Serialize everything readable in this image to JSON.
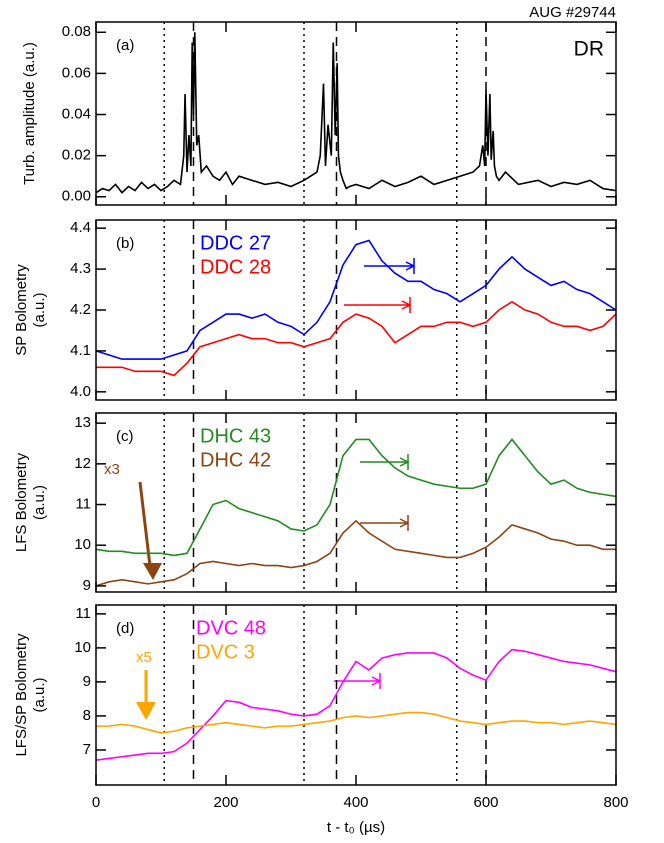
{
  "figure": {
    "shot": "AUG #29744",
    "xlabel": "t - t₀ (µs)"
  },
  "chart_data": [
    {
      "type": "line",
      "panel": "(a)",
      "tag": "DR",
      "ylabel": [
        "Turb. amplitude (a.u.)"
      ],
      "xlim": [
        0,
        800
      ],
      "xticks": [
        0,
        200,
        400,
        600,
        800
      ],
      "ylim": [
        -0.004,
        0.085
      ],
      "yticks": [
        {
          "value": 0,
          "label": "0.00"
        },
        0.02,
        0.04,
        0.06,
        0.08
      ],
      "dotted_x": [
        105,
        320,
        555
      ],
      "dashed_x": [
        150,
        370,
        600
      ],
      "x": [
        0,
        10,
        20,
        30,
        40,
        50,
        60,
        70,
        80,
        90,
        100,
        110,
        120,
        130,
        135,
        137,
        140,
        143,
        146,
        148,
        150,
        152,
        155,
        158,
        162,
        170,
        180,
        190,
        200,
        210,
        220,
        240,
        260,
        280,
        300,
        320,
        330,
        340,
        345,
        350,
        353,
        357,
        362,
        365,
        368,
        371,
        373,
        376,
        380,
        385,
        390,
        400,
        420,
        440,
        460,
        480,
        500,
        520,
        540,
        560,
        580,
        590,
        595,
        598,
        600,
        603,
        606,
        608,
        611,
        613,
        616,
        620,
        630,
        650,
        680,
        700,
        720,
        740,
        760,
        780,
        800
      ],
      "series": [
        {
          "color": "#000000",
          "values": [
            0.002,
            0.004,
            0.003,
            0.006,
            0.002,
            0.005,
            0.003,
            0.007,
            0.004,
            0.006,
            0.003,
            0.005,
            0.008,
            0.006,
            0.02,
            0.05,
            0.012,
            0.03,
            0.015,
            0.075,
            0.04,
            0.08,
            0.025,
            0.03,
            0.012,
            0.015,
            0.01,
            0.008,
            0.012,
            0.006,
            0.01,
            0.008,
            0.006,
            0.007,
            0.005,
            0.008,
            0.01,
            0.012,
            0.02,
            0.055,
            0.015,
            0.035,
            0.02,
            0.075,
            0.03,
            0.065,
            0.02,
            0.012,
            0.008,
            0.004,
            0.005,
            0.006,
            0.004,
            0.008,
            0.005,
            0.007,
            0.01,
            0.006,
            0.008,
            0.01,
            0.012,
            0.015,
            0.025,
            0.015,
            0.052,
            0.02,
            0.05,
            0.018,
            0.032,
            0.015,
            0.01,
            0.008,
            0.012,
            0.006,
            0.008,
            0.005,
            0.007,
            0.006,
            0.008,
            0.004,
            0.003
          ]
        }
      ]
    },
    {
      "type": "line",
      "panel": "(b)",
      "ylabel": [
        "SP Bolometry",
        "(a.u.)"
      ],
      "xlim": [
        0,
        800
      ],
      "xticks": [
        0,
        200,
        400,
        600,
        800
      ],
      "ylim": [
        3.98,
        4.42
      ],
      "yticks": [
        {
          "value": 4,
          "label": "4.0"
        },
        4.1,
        4.2,
        4.3,
        4.4
      ],
      "dotted_x": [
        105,
        320,
        555
      ],
      "dashed_x": [
        150,
        370,
        600
      ],
      "x": [
        0,
        20,
        40,
        60,
        80,
        100,
        120,
        140,
        160,
        180,
        200,
        220,
        240,
        260,
        280,
        300,
        320,
        340,
        360,
        380,
        400,
        420,
        440,
        460,
        480,
        500,
        520,
        540,
        560,
        580,
        600,
        620,
        640,
        660,
        680,
        700,
        720,
        740,
        760,
        780,
        800
      ],
      "series": [
        {
          "name": "DDC 27",
          "color": "#0000ff",
          "values": [
            4.1,
            4.09,
            4.08,
            4.08,
            4.08,
            4.08,
            4.09,
            4.1,
            4.15,
            4.17,
            4.19,
            4.19,
            4.18,
            4.19,
            4.17,
            4.16,
            4.14,
            4.17,
            4.22,
            4.31,
            4.36,
            4.37,
            4.32,
            4.29,
            4.27,
            4.27,
            4.25,
            4.24,
            4.22,
            4.24,
            4.26,
            4.3,
            4.33,
            4.3,
            4.28,
            4.26,
            4.27,
            4.25,
            4.24,
            4.22,
            4.2
          ]
        },
        {
          "name": "DDC 28",
          "color": "#ff0000",
          "values": [
            4.06,
            4.06,
            4.06,
            4.05,
            4.05,
            4.05,
            4.04,
            4.07,
            4.11,
            4.12,
            4.13,
            4.14,
            4.13,
            4.13,
            4.12,
            4.12,
            4.11,
            4.12,
            4.13,
            4.17,
            4.19,
            4.18,
            4.16,
            4.12,
            4.14,
            4.16,
            4.16,
            4.17,
            4.17,
            4.16,
            4.17,
            4.2,
            4.22,
            4.2,
            4.19,
            4.17,
            4.16,
            4.16,
            4.15,
            4.16,
            4.19
          ]
        }
      ]
    },
    {
      "type": "line",
      "panel": "(c)",
      "ylabel": [
        "LFS Bolometry",
        "(a.u.)"
      ],
      "annotation": "x3",
      "xlim": [
        0,
        800
      ],
      "xticks": [
        0,
        200,
        400,
        600,
        800
      ],
      "ylim": [
        8.85,
        13.25
      ],
      "yticks": [
        9,
        10,
        11,
        12,
        13
      ],
      "dotted_x": [
        105,
        320,
        555
      ],
      "dashed_x": [
        150,
        370,
        600
      ],
      "x": [
        0,
        20,
        40,
        60,
        80,
        100,
        120,
        140,
        160,
        180,
        200,
        220,
        240,
        260,
        280,
        300,
        320,
        340,
        360,
        380,
        400,
        420,
        440,
        460,
        480,
        500,
        520,
        540,
        560,
        580,
        600,
        620,
        640,
        660,
        680,
        700,
        720,
        740,
        760,
        780,
        800
      ],
      "series": [
        {
          "name": "DHC 43",
          "color": "#228b22",
          "values": [
            9.9,
            9.85,
            9.85,
            9.8,
            9.8,
            9.8,
            9.75,
            9.8,
            10.4,
            11.0,
            11.1,
            10.9,
            10.8,
            10.7,
            10.6,
            10.4,
            10.35,
            10.5,
            11.0,
            12.2,
            12.6,
            12.6,
            12.2,
            11.9,
            11.7,
            11.6,
            11.5,
            11.45,
            11.4,
            11.4,
            11.5,
            12.2,
            12.6,
            12.2,
            11.8,
            11.5,
            11.6,
            11.4,
            11.3,
            11.25,
            11.2
          ]
        },
        {
          "name": "DHC 42",
          "color": "#8b4513",
          "values": [
            9.0,
            9.1,
            9.15,
            9.1,
            9.05,
            9.1,
            9.15,
            9.3,
            9.55,
            9.6,
            9.55,
            9.5,
            9.55,
            9.5,
            9.5,
            9.45,
            9.5,
            9.6,
            9.8,
            10.3,
            10.6,
            10.3,
            10.1,
            9.9,
            9.85,
            9.8,
            9.75,
            9.7,
            9.7,
            9.8,
            9.95,
            10.2,
            10.5,
            10.4,
            10.3,
            10.15,
            10.1,
            10.0,
            10.0,
            9.9,
            9.9
          ]
        }
      ]
    },
    {
      "type": "line",
      "panel": "(d)",
      "ylabel": [
        "LFS/SP Bolometry",
        "(a.u.)"
      ],
      "annotation": "x5",
      "xlim": [
        0,
        800
      ],
      "xticks": [
        0,
        200,
        400,
        600,
        800
      ],
      "ylim": [
        5.97,
        11.26
      ],
      "yticks": [
        7,
        8,
        9,
        10,
        11
      ],
      "dotted_x": [
        105,
        320,
        555
      ],
      "dashed_x": [
        150,
        370,
        600
      ],
      "x": [
        0,
        20,
        40,
        60,
        80,
        100,
        120,
        140,
        160,
        180,
        200,
        220,
        240,
        260,
        280,
        300,
        320,
        340,
        360,
        380,
        400,
        420,
        440,
        460,
        480,
        500,
        520,
        540,
        560,
        580,
        600,
        620,
        640,
        660,
        680,
        700,
        720,
        740,
        760,
        780,
        800
      ],
      "series": [
        {
          "name": "DVC 48",
          "color": "#ff00ff",
          "values": [
            6.7,
            6.75,
            6.8,
            6.85,
            6.9,
            6.9,
            6.95,
            7.2,
            7.6,
            8.0,
            8.45,
            8.4,
            8.25,
            8.2,
            8.15,
            8.05,
            8.0,
            8.05,
            8.3,
            9.0,
            9.6,
            9.35,
            9.7,
            9.8,
            9.85,
            9.85,
            9.85,
            9.7,
            9.4,
            9.2,
            9.05,
            9.6,
            9.95,
            9.9,
            9.8,
            9.7,
            9.6,
            9.55,
            9.5,
            9.4,
            9.3
          ]
        },
        {
          "name": "DVC 3",
          "color": "#ffa500",
          "values": [
            7.7,
            7.7,
            7.75,
            7.7,
            7.6,
            7.5,
            7.55,
            7.65,
            7.7,
            7.75,
            7.8,
            7.75,
            7.7,
            7.65,
            7.7,
            7.7,
            7.75,
            7.8,
            7.85,
            7.95,
            8.0,
            7.95,
            8.0,
            8.05,
            8.1,
            8.1,
            8.05,
            7.95,
            7.85,
            7.8,
            7.75,
            7.8,
            7.85,
            7.85,
            7.8,
            7.8,
            7.75,
            7.8,
            7.85,
            7.8,
            7.75
          ]
        }
      ]
    }
  ]
}
